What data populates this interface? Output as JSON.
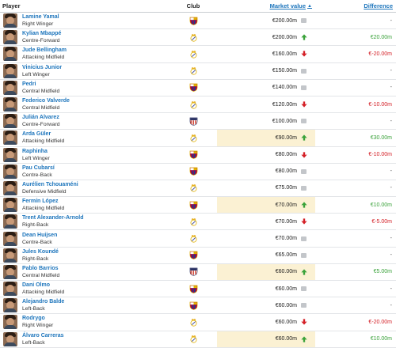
{
  "headers": {
    "player": "Player",
    "club": "Club",
    "market_value": "Market value",
    "sort_arrow": "▲",
    "difference": "Difference"
  },
  "colors": {
    "link": "#1d75bc",
    "up": "#3aa23a",
    "down": "#d42027",
    "flat": "#c3c6ca",
    "highlight": "#fbf1d3"
  },
  "rows": [
    {
      "name": "Lamine Yamal",
      "position": "Right Winger",
      "club": "barcelona-crest-icon",
      "market_value": "€200.00m",
      "trend": "flat",
      "difference": "-",
      "highlight": false
    },
    {
      "name": "Kylian Mbappé",
      "position": "Centre-Forward",
      "club": "real-madrid-crest-icon",
      "market_value": "€200.00m",
      "trend": "up",
      "difference": "€20.00m",
      "highlight": false
    },
    {
      "name": "Jude Bellingham",
      "position": "Attacking Midfield",
      "club": "real-madrid-crest-icon",
      "market_value": "€160.00m",
      "trend": "down",
      "difference": "€-20.00m",
      "highlight": false
    },
    {
      "name": "Vinicius Junior",
      "position": "Left Winger",
      "club": "real-madrid-crest-icon",
      "market_value": "€150.00m",
      "trend": "flat",
      "difference": "-",
      "highlight": false
    },
    {
      "name": "Pedri",
      "position": "Central Midfield",
      "club": "barcelona-crest-icon",
      "market_value": "€140.00m",
      "trend": "flat",
      "difference": "-",
      "highlight": false
    },
    {
      "name": "Federico Valverde",
      "position": "Central Midfield",
      "club": "real-madrid-crest-icon",
      "market_value": "€120.00m",
      "trend": "down",
      "difference": "€-10.00m",
      "highlight": false
    },
    {
      "name": "Julián Alvarez",
      "position": "Centre-Forward",
      "club": "atletico-madrid-crest-icon",
      "market_value": "€100.00m",
      "trend": "flat",
      "difference": "-",
      "highlight": false
    },
    {
      "name": "Arda Güler",
      "position": "Attacking Midfield",
      "club": "real-madrid-crest-icon",
      "market_value": "€90.00m",
      "trend": "up",
      "difference": "€30.00m",
      "highlight": true
    },
    {
      "name": "Raphinha",
      "position": "Left Winger",
      "club": "barcelona-crest-icon",
      "market_value": "€80.00m",
      "trend": "down",
      "difference": "€-10.00m",
      "highlight": false
    },
    {
      "name": "Pau Cubarsí",
      "position": "Centre-Back",
      "club": "barcelona-crest-icon",
      "market_value": "€80.00m",
      "trend": "flat",
      "difference": "-",
      "highlight": false
    },
    {
      "name": "Aurélien Tchouaméni",
      "position": "Defensive Midfield",
      "club": "real-madrid-crest-icon",
      "market_value": "€75.00m",
      "trend": "flat",
      "difference": "-",
      "highlight": false
    },
    {
      "name": "Fermín López",
      "position": "Attacking Midfield",
      "club": "barcelona-crest-icon",
      "market_value": "€70.00m",
      "trend": "up",
      "difference": "€10.00m",
      "highlight": true
    },
    {
      "name": "Trent Alexander-Arnold",
      "position": "Right-Back",
      "club": "real-madrid-crest-icon",
      "market_value": "€70.00m",
      "trend": "down",
      "difference": "€-5.00m",
      "highlight": false
    },
    {
      "name": "Dean Huijsen",
      "position": "Centre-Back",
      "club": "real-madrid-crest-icon",
      "market_value": "€70.00m",
      "trend": "flat",
      "difference": "-",
      "highlight": false
    },
    {
      "name": "Jules Koundé",
      "position": "Right-Back",
      "club": "barcelona-crest-icon",
      "market_value": "€65.00m",
      "trend": "flat",
      "difference": "-",
      "highlight": false
    },
    {
      "name": "Pablo Barrios",
      "position": "Central Midfield",
      "club": "atletico-madrid-crest-icon",
      "market_value": "€60.00m",
      "trend": "up",
      "difference": "€5.00m",
      "highlight": true
    },
    {
      "name": "Dani Olmo",
      "position": "Attacking Midfield",
      "club": "barcelona-crest-icon",
      "market_value": "€60.00m",
      "trend": "flat",
      "difference": "-",
      "highlight": false
    },
    {
      "name": "Alejandro Balde",
      "position": "Left-Back",
      "club": "barcelona-crest-icon",
      "market_value": "€60.00m",
      "trend": "flat",
      "difference": "-",
      "highlight": false
    },
    {
      "name": "Rodrygo",
      "position": "Right Winger",
      "club": "real-madrid-crest-icon",
      "market_value": "€60.00m",
      "trend": "down",
      "difference": "€-20.00m",
      "highlight": false
    },
    {
      "name": "Álvaro Carreras",
      "position": "Left-Back",
      "club": "real-madrid-crest-icon",
      "market_value": "€60.00m",
      "trend": "up",
      "difference": "€10.00m",
      "highlight": true
    }
  ]
}
